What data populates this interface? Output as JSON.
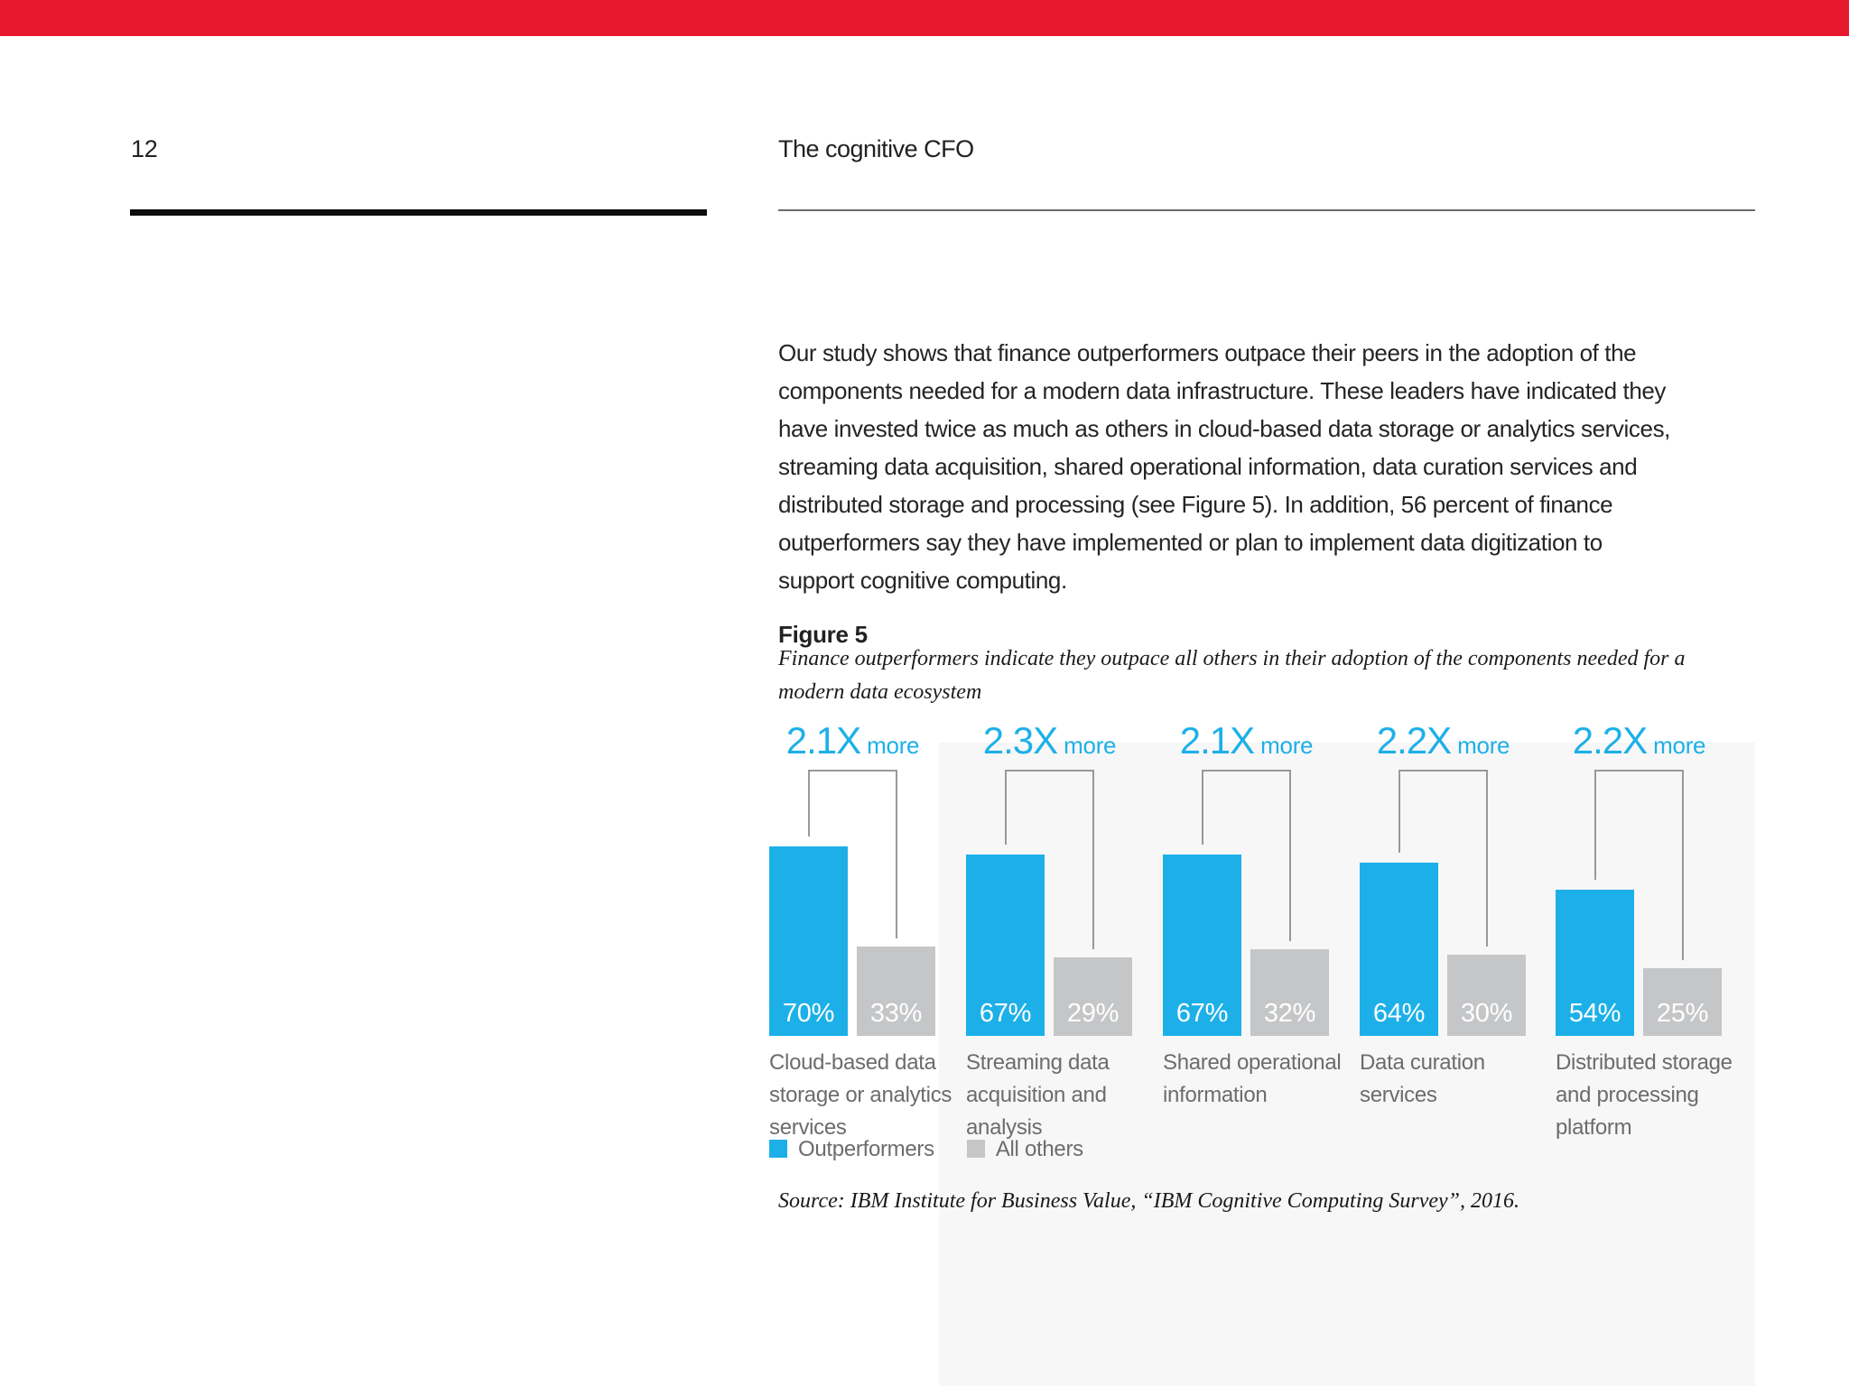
{
  "page": {
    "number": "12",
    "running_header": "The cognitive CFO",
    "accent_red": "#e8182d"
  },
  "body_paragraph": "Our study shows that finance outperformers outpace their peers in the adoption of the\ncomponents needed for a modern data infrastructure. These leaders have indicated they\nhave invested twice as much as others in cloud-based data storage or analytics services,\nstreaming data acquisition, shared operational information, data curation services and\ndistributed storage and processing (see Figure 5). In addition, 56 percent of finance\noutperformers say they have implemented or plan to implement data digitization to\nsupport cognitive computing.",
  "figure": {
    "label": "Figure 5",
    "caption": "Finance outperformers indicate they outpace all others in their adoption of the components needed for a\nmodern data ecosystem",
    "source": "Source: IBM Institute for Business Value, “IBM Cognitive Computing Survey”, 2016."
  },
  "chart_data": {
    "type": "bar",
    "title": "Finance outperformers indicate they outpace all others in their adoption of the components needed for a modern data ecosystem",
    "categories": [
      "Cloud-based data\nstorage or analytics\nservices",
      "Streaming data\nacquisition and\nanalysis",
      "Shared operational\ninformation",
      "Data curation\nservices",
      "Distributed storage\nand processing\nplatform"
    ],
    "series": [
      {
        "name": "Outperformers",
        "color": "#1db0e8",
        "values": [
          70,
          67,
          67,
          64,
          54
        ]
      },
      {
        "name": "All others",
        "color": "#c5c6c8",
        "values": [
          33,
          29,
          32,
          30,
          25
        ]
      }
    ],
    "multiplier_labels": [
      "2.1X",
      "2.3X",
      "2.1X",
      "2.2X",
      "2.2X"
    ],
    "multiplier_suffix": "more",
    "value_suffix": "%",
    "multiplier_color": "#1db0e8",
    "bracket_color": "#97999b",
    "ylim": [
      0,
      100
    ],
    "grid": false,
    "legend_position": "bottom"
  }
}
